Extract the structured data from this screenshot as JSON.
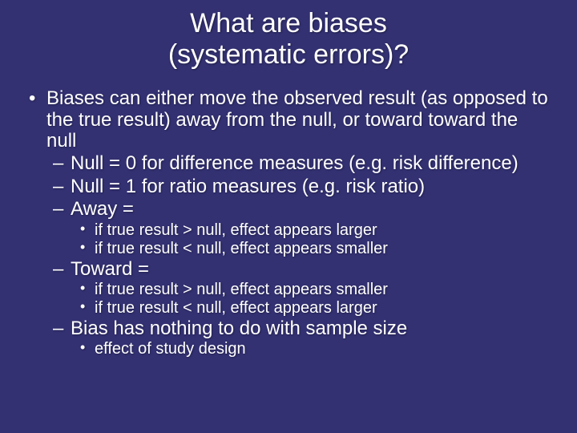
{
  "background_color": "#333172",
  "text_color": "#ffffff",
  "title_line1": "What are biases",
  "title_line2": "(systematic errors)?",
  "title_fontsize": 34,
  "body_fontsize": 24,
  "sub_fontsize": 20,
  "bullets": {
    "main": "Biases can either move the observed result (as opposed to the true result) away from the null, or toward toward the null",
    "null0": "Null = 0 for difference measures (e.g. risk difference)",
    "null1": "Null = 1 for ratio measures (e.g. risk ratio)",
    "away": "Away =",
    "away_a": "if true result > null, effect appears larger",
    "away_b": "if true result < null, effect appears smaller",
    "toward": "Toward =",
    "toward_a": "if true result > null, effect appears smaller",
    "toward_b": "if true result < null, effect appears larger",
    "bias_sample": "Bias has nothing to do with sample size",
    "study_design": "effect of study design"
  }
}
